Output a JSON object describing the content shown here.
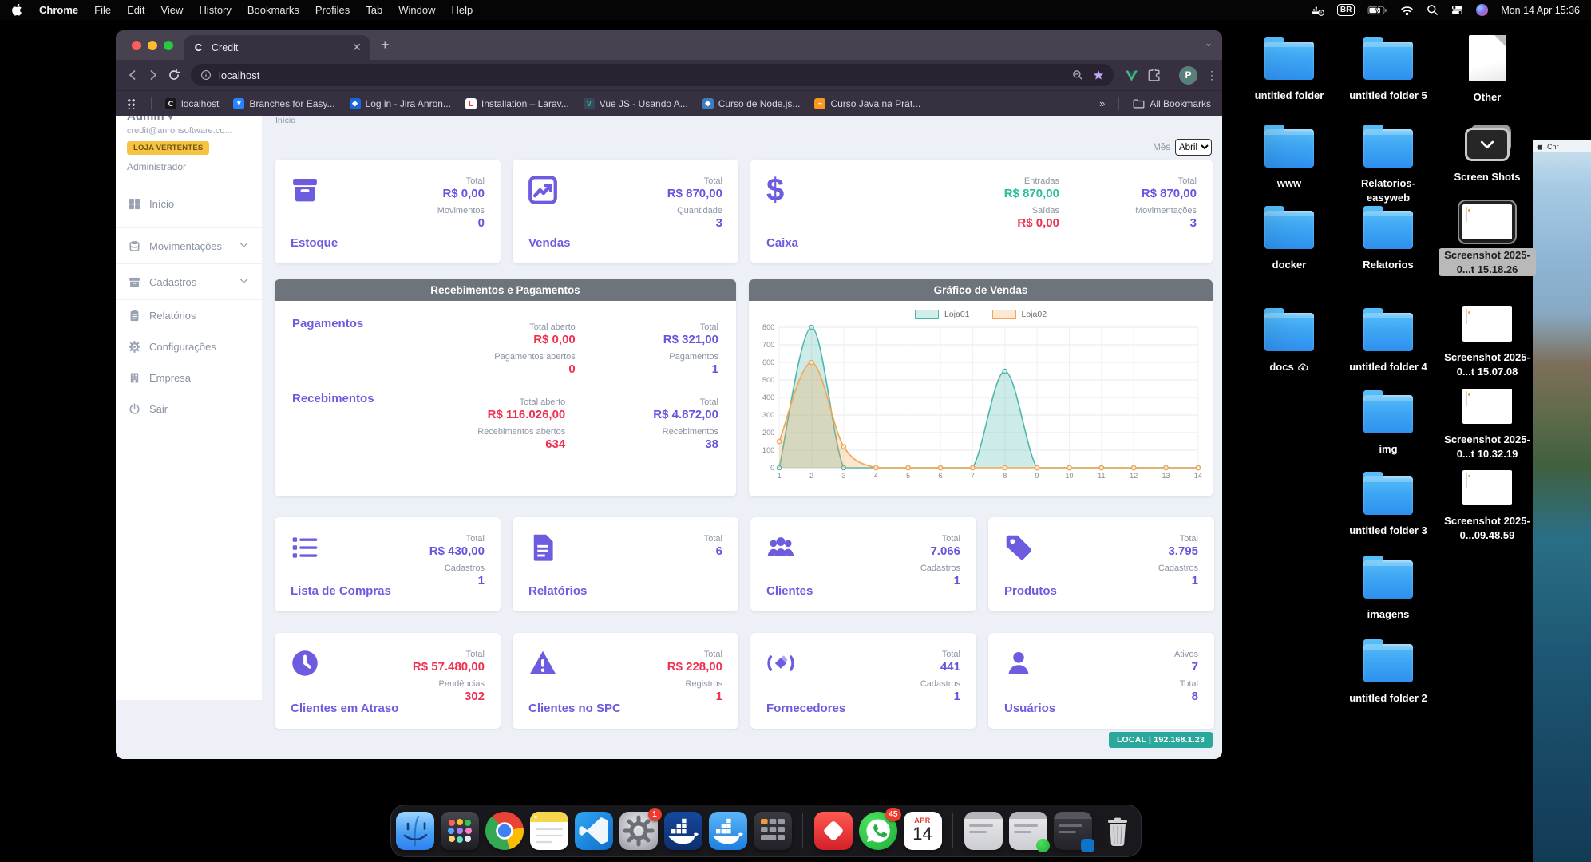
{
  "menubar": {
    "app": "Chrome",
    "items": [
      "File",
      "Edit",
      "View",
      "History",
      "Bookmarks",
      "Profiles",
      "Tab",
      "Window",
      "Help"
    ],
    "input_source": "BR",
    "clock": "Mon 14 Apr 15:36"
  },
  "browser": {
    "tab": {
      "favicon": "C",
      "title": "Credit"
    },
    "address": "localhost",
    "profile": "P",
    "overflow": "»",
    "all_bookmarks": "All Bookmarks",
    "bookmarks": [
      {
        "icon": "c",
        "label": "localhost"
      },
      {
        "icon": "bitbucket",
        "label": "Branches for Easy..."
      },
      {
        "icon": "jira",
        "label": "Log in - Jira Anron..."
      },
      {
        "icon": "laravel",
        "label": "Installation – Larav..."
      },
      {
        "icon": "vue",
        "label": "Vue JS - Usando A..."
      },
      {
        "icon": "node",
        "label": "Curso de Node.js..."
      },
      {
        "icon": "java",
        "label": "Curso Java na Prát..."
      }
    ]
  },
  "sidebar": {
    "user": {
      "name": "Admin ▾",
      "email": "credit@anronsoftware.co...",
      "store_badge": "LOJA VERTENTES",
      "role": "Administrador"
    },
    "items": [
      {
        "icon": "grid",
        "label": "Início",
        "chevron": false,
        "grouped": false
      },
      {
        "icon": "db",
        "label": "Movimentações",
        "chevron": true,
        "grouped": true
      },
      {
        "icon": "archive",
        "label": "Cadastros",
        "chevron": true,
        "grouped": true
      },
      {
        "icon": "clipboard",
        "label": "Relatórios",
        "chevron": false,
        "grouped": false
      },
      {
        "icon": "gear",
        "label": "Configurações",
        "chevron": false,
        "grouped": false
      },
      {
        "icon": "building",
        "label": "Empresa",
        "chevron": false,
        "grouped": false
      },
      {
        "icon": "power",
        "label": "Sair",
        "chevron": false,
        "grouped": false
      }
    ]
  },
  "dashboard": {
    "breadcrumb": "Início",
    "month_filter": {
      "label": "Mês",
      "value": "Abril"
    },
    "status_badge": "LOCAL | 192.168.1.23",
    "row1": [
      {
        "title": "Estoque",
        "icon": "box",
        "wide": false,
        "stats_groups": [
          [
            {
              "label": "Total",
              "value": "R$ 0,00",
              "color": "purple"
            },
            {
              "label": "Movimentos",
              "value": "0",
              "color": "purple"
            }
          ]
        ]
      },
      {
        "title": "Vendas",
        "icon": "chartline",
        "wide": false,
        "stats_groups": [
          [
            {
              "label": "Total",
              "value": "R$ 870,00",
              "color": "purple"
            },
            {
              "label": "Quantidade",
              "value": "3",
              "color": "purple"
            }
          ]
        ]
      },
      {
        "title": "Caixa",
        "icon": "dollar",
        "wide": true,
        "stats_groups": [
          [
            {
              "label": "Entradas",
              "value": "R$ 870,00",
              "color": "green"
            },
            {
              "label": "Saídas",
              "value": "R$ 0,00",
              "color": "red"
            }
          ],
          [
            {
              "label": "Total",
              "value": "R$ 870,00",
              "color": "purple"
            },
            {
              "label": "Movimentações",
              "value": "3",
              "color": "purple"
            }
          ]
        ]
      }
    ],
    "payments_panel": {
      "title": "Recebimentos e Pagamentos",
      "rows": [
        {
          "name": "Pagamentos",
          "groups": [
            [
              {
                "label": "Total aberto",
                "value": "R$ 0,00",
                "color": "red"
              },
              {
                "label": "Pagamentos abertos",
                "value": "0",
                "color": "red"
              }
            ],
            [
              {
                "label": "Total",
                "value": "R$ 321,00",
                "color": "purple"
              },
              {
                "label": "Pagamentos",
                "value": "1",
                "color": "purple"
              }
            ]
          ]
        },
        {
          "name": "Recebimentos",
          "groups": [
            [
              {
                "label": "Total aberto",
                "value": "R$ 116.026,00",
                "color": "red"
              },
              {
                "label": "Recebimentos abertos",
                "value": "634",
                "color": "red"
              }
            ],
            [
              {
                "label": "Total",
                "value": "R$ 4.872,00",
                "color": "purple"
              },
              {
                "label": "Recebimentos",
                "value": "38",
                "color": "purple"
              }
            ]
          ]
        }
      ]
    },
    "chart_panel": {
      "title": "Gráfico de Vendas"
    },
    "row3": [
      {
        "title": "Lista de Compras",
        "icon": "list",
        "wide": false,
        "stats_groups": [
          [
            {
              "label": "Total",
              "value": "R$ 430,00",
              "color": "purple"
            },
            {
              "label": "Cadastros",
              "value": "1",
              "color": "purple"
            }
          ]
        ]
      },
      {
        "title": "Relatórios",
        "icon": "doc",
        "wide": false,
        "stats_groups": [
          [
            {
              "label": "Total",
              "value": "6",
              "color": "purple"
            }
          ]
        ]
      },
      {
        "title": "Clientes",
        "icon": "people",
        "wide": false,
        "stats_groups": [
          [
            {
              "label": "Total",
              "value": "7.066",
              "color": "purple"
            },
            {
              "label": "Cadastros",
              "value": "1",
              "color": "purple"
            }
          ]
        ]
      },
      {
        "title": "Produtos",
        "icon": "tag",
        "wide": false,
        "stats_groups": [
          [
            {
              "label": "Total",
              "value": "3.795",
              "color": "purple"
            },
            {
              "label": "Cadastros",
              "value": "1",
              "color": "purple"
            }
          ]
        ]
      }
    ],
    "row4": [
      {
        "title": "Clientes em Atraso",
        "icon": "clock",
        "wide": false,
        "stats_groups": [
          [
            {
              "label": "Total",
              "value": "R$ 57.480,00",
              "color": "red"
            },
            {
              "label": "Pendências",
              "value": "302",
              "color": "red"
            }
          ]
        ]
      },
      {
        "title": "Clientes no SPC",
        "icon": "warning",
        "wide": false,
        "stats_groups": [
          [
            {
              "label": "Total",
              "value": "R$ 228,00",
              "color": "red"
            },
            {
              "label": "Registros",
              "value": "1",
              "color": "red"
            }
          ]
        ]
      },
      {
        "title": "Fornecedores",
        "icon": "handshake",
        "wide": false,
        "stats_groups": [
          [
            {
              "label": "Total",
              "value": "441",
              "color": "purple"
            },
            {
              "label": "Cadastros",
              "value": "1",
              "color": "purple"
            }
          ]
        ]
      },
      {
        "title": "Usuários",
        "icon": "person",
        "wide": false,
        "stats_groups": [
          [
            {
              "label": "Ativos",
              "value": "7",
              "color": "purple"
            },
            {
              "label": "Total",
              "value": "8",
              "color": "purple"
            }
          ]
        ]
      }
    ]
  },
  "chart_data": {
    "type": "area",
    "title": "Gráfico de Vendas",
    "x": [
      1,
      2,
      3,
      4,
      5,
      6,
      7,
      8,
      9,
      10,
      11,
      12,
      13,
      14
    ],
    "ylim": [
      0,
      800
    ],
    "ytick": 100,
    "grid": true,
    "legend_position": "top",
    "series": [
      {
        "name": "Loja01",
        "color": "#4DB6AC",
        "values": [
          0,
          800,
          0,
          0,
          0,
          0,
          0,
          550,
          0,
          0,
          0,
          0,
          0,
          0
        ]
      },
      {
        "name": "Loja02",
        "color": "#F2A654",
        "values": [
          150,
          600,
          120,
          0,
          0,
          0,
          0,
          0,
          0,
          0,
          0,
          0,
          0,
          0
        ]
      }
    ]
  },
  "desktop": {
    "icons": [
      {
        "label": "untitled folder",
        "kind": "folder",
        "col": 1,
        "row": 1,
        "selected": false,
        "cloud": false
      },
      {
        "label": "untitled folder 5",
        "kind": "folder",
        "col": 2,
        "row": 1,
        "selected": false,
        "cloud": false
      },
      {
        "label": "Other",
        "kind": "document",
        "col": 3,
        "row": 1,
        "selected": false,
        "cloud": false
      },
      {
        "label": "www",
        "kind": "folder",
        "col": 1,
        "row": 2,
        "selected": false,
        "cloud": false
      },
      {
        "label": "Relatorios-easyweb",
        "kind": "folder",
        "col": 2,
        "row": 2,
        "selected": false,
        "cloud": false
      },
      {
        "label": "Screen Shots",
        "kind": "screenshot-app",
        "col": 3,
        "row": 2,
        "selected": false,
        "cloud": false
      },
      {
        "label": "docker",
        "kind": "folder",
        "col": 1,
        "row": 3,
        "selected": false,
        "cloud": false
      },
      {
        "label": "Relatorios",
        "kind": "folder",
        "col": 2,
        "row": 3,
        "selected": false,
        "cloud": false
      },
      {
        "label": "Screenshot 2025-0...t 15.18.26",
        "kind": "screenshot",
        "col": 3,
        "row": 3,
        "selected": true,
        "cloud": false
      },
      {
        "label": "docs",
        "kind": "folder",
        "col": 1,
        "row": 4,
        "selected": false,
        "cloud": true
      },
      {
        "label": "untitled folder 4",
        "kind": "folder",
        "col": 2,
        "row": 4,
        "selected": false,
        "cloud": false
      },
      {
        "label": "Screenshot 2025-0...t 15.07.08",
        "kind": "screenshot",
        "col": 3,
        "row": 4,
        "selected": false,
        "cloud": false
      },
      {
        "label": "img",
        "kind": "folder",
        "col": 2,
        "row": 5,
        "selected": false,
        "cloud": false
      },
      {
        "label": "Screenshot 2025-0...t 10.32.19",
        "kind": "screenshot",
        "col": 3,
        "row": 5,
        "selected": false,
        "cloud": false
      },
      {
        "label": "untitled folder 3",
        "kind": "folder",
        "col": 2,
        "row": 6,
        "selected": false,
        "cloud": false
      },
      {
        "label": "Screenshot 2025-0...09.48.59",
        "kind": "screenshot",
        "col": 3,
        "row": 6,
        "selected": false,
        "cloud": false
      },
      {
        "label": "imagens",
        "kind": "folder",
        "col": 2,
        "row": 7,
        "selected": false,
        "cloud": false
      },
      {
        "label": "untitled folder 2",
        "kind": "folder",
        "col": 2,
        "row": 8,
        "selected": false,
        "cloud": false
      }
    ]
  },
  "dock": {
    "items": [
      {
        "name": "finder"
      },
      {
        "name": "launchpad"
      },
      {
        "name": "chrome"
      },
      {
        "name": "notes"
      },
      {
        "name": "vscode"
      },
      {
        "name": "settings",
        "badge": "1"
      },
      {
        "name": "docker"
      },
      {
        "name": "docker-desktop"
      },
      {
        "name": "calculator"
      },
      {
        "name": "separator"
      },
      {
        "name": "redapp"
      },
      {
        "name": "whatsapp",
        "badge": "45"
      },
      {
        "name": "calendar",
        "month": "APR",
        "day": "14"
      },
      {
        "name": "separator"
      },
      {
        "name": "window-preview"
      },
      {
        "name": "window-preview",
        "overlay": "whatsapp"
      },
      {
        "name": "window-preview",
        "overlay": "vscode",
        "dark": true
      },
      {
        "name": "trash"
      }
    ]
  }
}
